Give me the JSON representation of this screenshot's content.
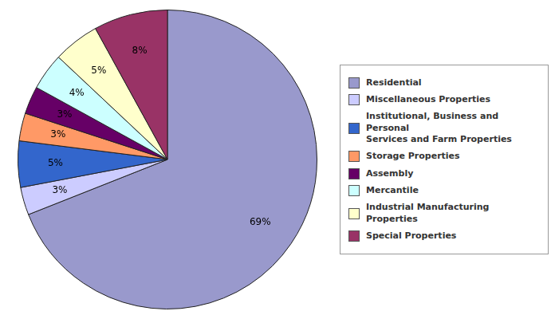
{
  "chart_data": {
    "type": "pie",
    "categories": [
      "Residential",
      "Miscellaneous Properties",
      "Institutional, Business and Personal\nServices and Farm Properties",
      "Storage Properties",
      "Assembly",
      "Mercantile",
      "Industrial Manufacturing Properties",
      "Special Properties"
    ],
    "values": [
      69,
      3,
      5,
      3,
      3,
      4,
      5,
      8
    ],
    "value_labels": [
      "69%",
      "3%",
      "5%",
      "3%",
      "3%",
      "4%",
      "5%",
      "8%"
    ],
    "colors": [
      "#9999CC",
      "#CCCCFF",
      "#3366CC",
      "#FF9966",
      "#660066",
      "#CCFFFF",
      "#FFFFCC",
      "#993366"
    ],
    "data_labels": true,
    "legend": "right"
  }
}
